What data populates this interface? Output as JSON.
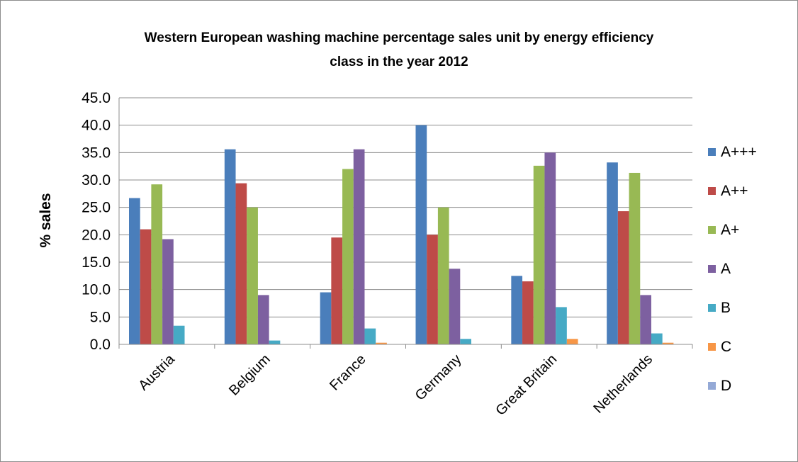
{
  "chart_data": {
    "type": "bar",
    "title_line1": "Western European washing machine  percentage sales unit by energy efficiency",
    "title_line2": "class in the year 2012",
    "xlabel": "",
    "ylabel": "% sales",
    "ylim": [
      0,
      45
    ],
    "yticks": [
      "0.0",
      "5.0",
      "10.0",
      "15.0",
      "20.0",
      "25.0",
      "30.0",
      "35.0",
      "40.0",
      "45.0"
    ],
    "grid": true,
    "legend_position": "right",
    "categories": [
      "Austria",
      "Belgium",
      "France",
      "Germany",
      "Great Britain",
      "Netherlands"
    ],
    "series": [
      {
        "name": "A+++",
        "color": "#4a7ebb",
        "values": [
          26.7,
          35.6,
          9.5,
          40.0,
          12.5,
          33.2
        ]
      },
      {
        "name": "A++",
        "color": "#be4b48",
        "values": [
          21.0,
          29.4,
          19.5,
          20.0,
          11.5,
          24.3
        ]
      },
      {
        "name": "A+",
        "color": "#98b954",
        "values": [
          29.2,
          25.0,
          32.0,
          25.0,
          32.6,
          31.3
        ]
      },
      {
        "name": "A",
        "color": "#7d60a0",
        "values": [
          19.2,
          9.0,
          35.6,
          13.8,
          35.0,
          9.0
        ]
      },
      {
        "name": "B",
        "color": "#46aac5",
        "values": [
          3.4,
          0.7,
          2.9,
          1.0,
          6.8,
          2.0
        ]
      },
      {
        "name": "C",
        "color": "#f79646",
        "values": [
          0.0,
          0.0,
          0.3,
          0.0,
          1.0,
          0.3
        ]
      },
      {
        "name": "D",
        "color": "#94a9d6",
        "values": [
          0.0,
          0.0,
          0.0,
          0.0,
          0.0,
          0.0
        ]
      }
    ]
  }
}
